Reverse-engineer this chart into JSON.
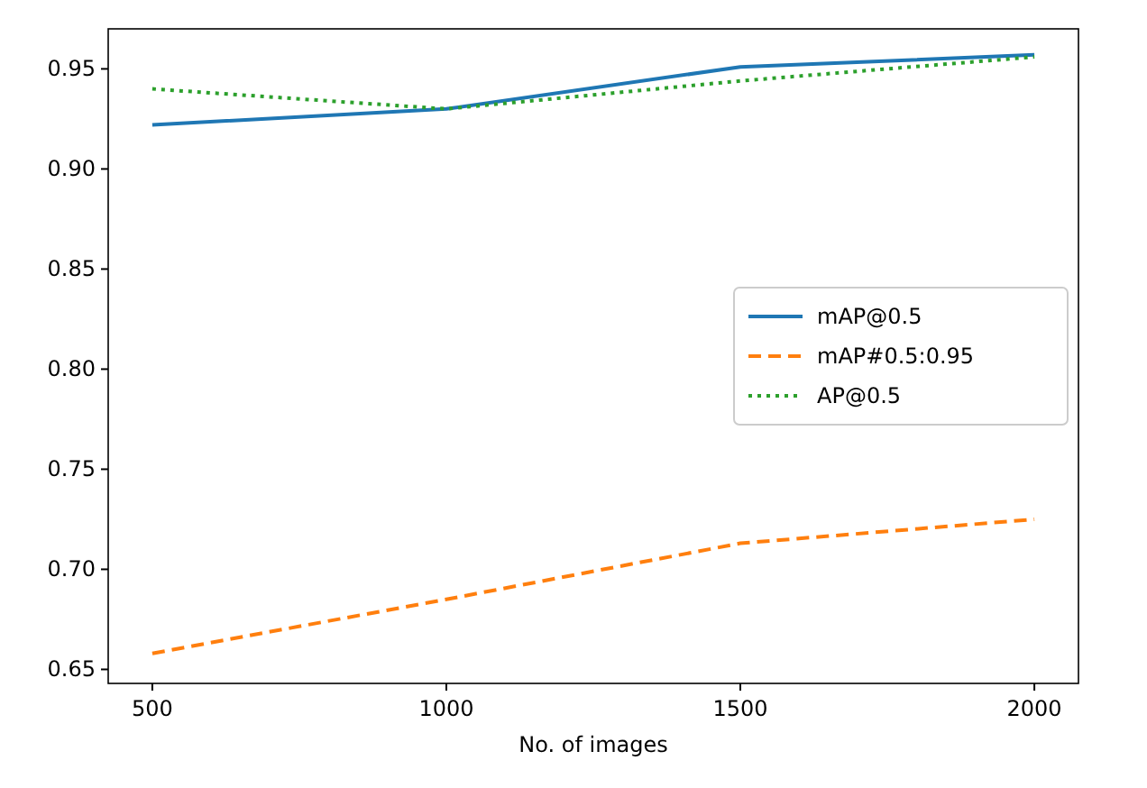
{
  "chart_data": {
    "type": "line",
    "xlabel": "No. of images",
    "x": [
      500,
      1000,
      1500,
      2000
    ],
    "series": [
      {
        "name": "mAP@0.5",
        "color": "#1f77b4",
        "line_style": "solid",
        "values": [
          0.922,
          0.93,
          0.951,
          0.957
        ]
      },
      {
        "name": "mAP#0.5:0.95",
        "color": "#ff7f0e",
        "line_style": "dashed",
        "values": [
          0.658,
          0.685,
          0.713,
          0.725
        ]
      },
      {
        "name": "AP@0.5",
        "color": "#2ca02c",
        "line_style": "dotted",
        "values": [
          0.94,
          0.93,
          0.944,
          0.956
        ]
      }
    ],
    "xlim": [
      425,
      2075
    ],
    "xticks": [
      500,
      1000,
      1500,
      2000
    ],
    "ylim": [
      0.643,
      0.97
    ],
    "yticks": [
      {
        "value": 0.65,
        "label": "0.65"
      },
      {
        "value": 0.7,
        "label": "0.70"
      },
      {
        "value": 0.75,
        "label": "0.75"
      },
      {
        "value": 0.8,
        "label": "0.80"
      },
      {
        "value": 0.85,
        "label": "0.85"
      },
      {
        "value": 0.9,
        "label": "0.90"
      },
      {
        "value": 0.95,
        "label": "0.95"
      }
    ],
    "legend": "right",
    "grid": false
  }
}
